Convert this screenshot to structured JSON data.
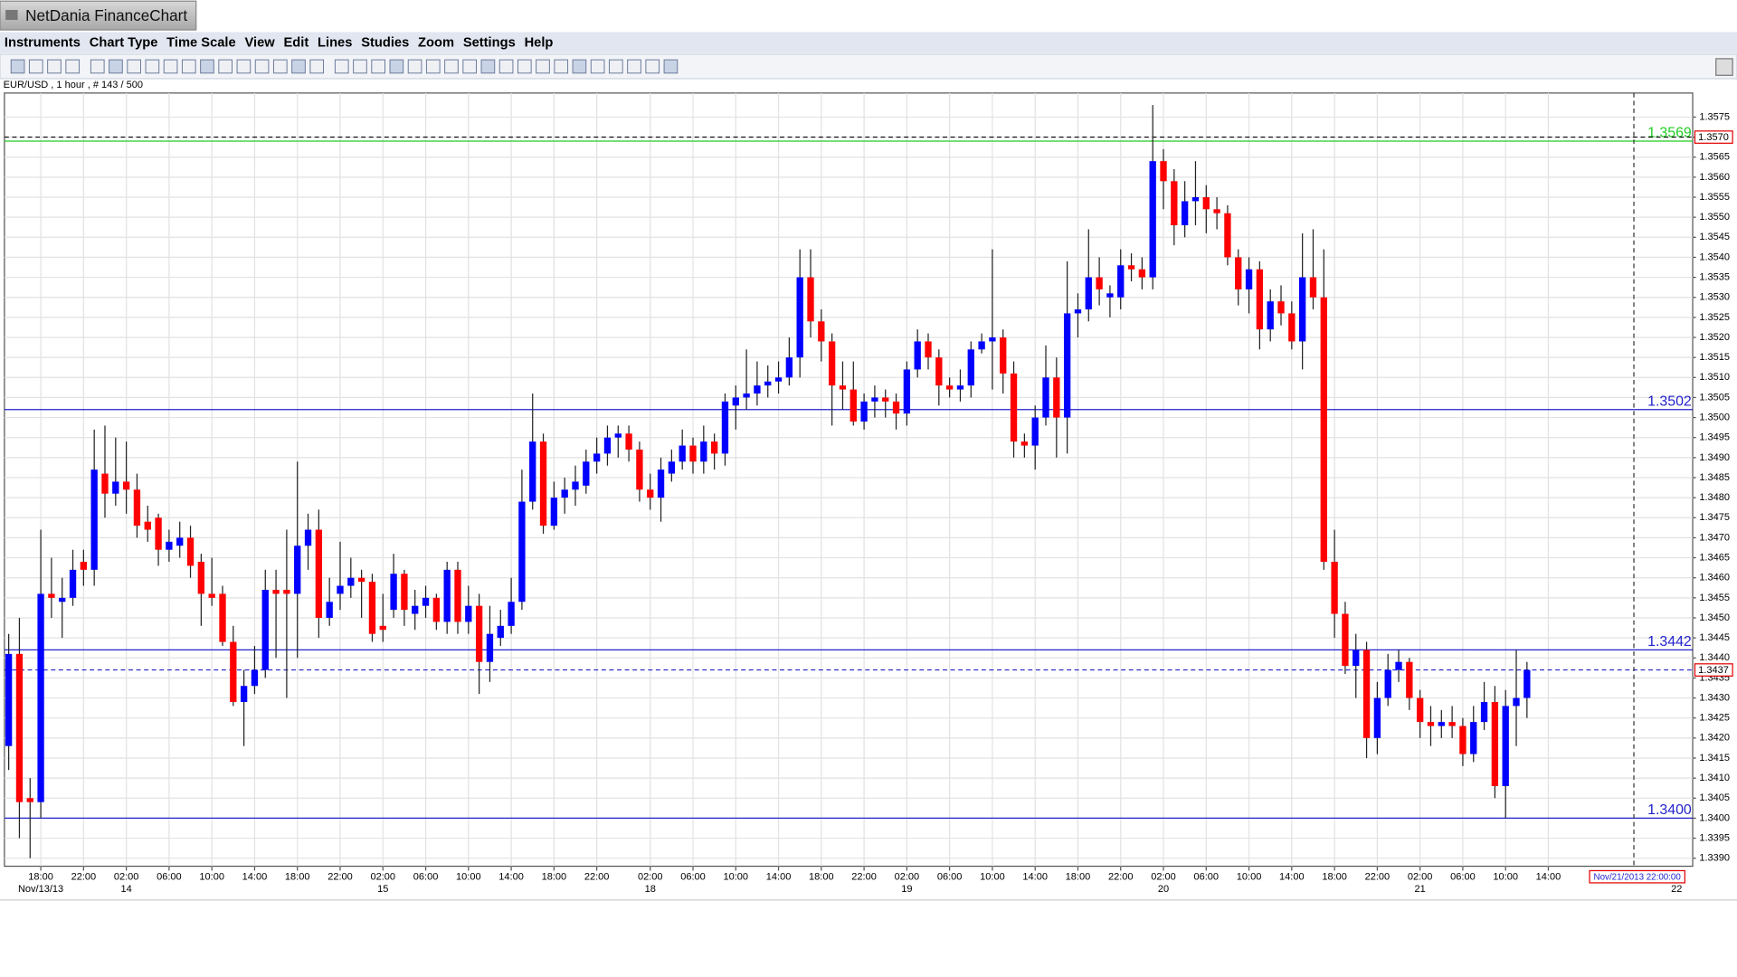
{
  "window_title": "NetDania FinanceChart",
  "menu": [
    "Instruments",
    "Chart Type",
    "Time Scale",
    "View",
    "Edit",
    "Lines",
    "Studies",
    "Zoom",
    "Settings",
    "Help"
  ],
  "chart_data": {
    "type": "candlestick",
    "title": "EUR/USD , 1 hour , # 143 / 500",
    "up_color": "#0000ff",
    "down_color": "#ff0000",
    "grid": true,
    "open": [
      1.3418,
      1.3441,
      1.3405,
      1.3404,
      1.3456,
      1.3454,
      1.3455,
      1.3464,
      1.3462,
      1.3486,
      1.3481,
      1.3484,
      1.3482,
      1.3474,
      1.3475,
      1.3467,
      1.3468,
      1.347,
      1.3464,
      1.3456,
      1.3456,
      1.3444,
      1.3429,
      1.3433,
      1.3437,
      1.3457,
      1.3457,
      1.3456,
      1.3468,
      1.3472,
      1.345,
      1.3456,
      1.3458,
      1.346,
      1.3459,
      1.3448,
      1.3452,
      1.3461,
      1.3451,
      1.3453,
      1.3455,
      1.3449,
      1.3462,
      1.3449,
      1.3453,
      1.3439,
      1.3445,
      1.3448,
      1.3454,
      1.3479,
      1.3494,
      1.3473,
      1.348,
      1.3482,
      1.3483,
      1.3489,
      1.3491,
      1.3495,
      1.3496,
      1.3492,
      1.3482,
      1.348,
      1.3486,
      1.3489,
      1.3493,
      1.3489,
      1.3494,
      1.3491,
      1.3503,
      1.3505,
      1.3506,
      1.3508,
      1.3509,
      1.351,
      1.3515,
      1.3535,
      1.3524,
      1.3519,
      1.3508,
      1.3507,
      1.3499,
      1.3504,
      1.3505,
      1.3504,
      1.3501,
      1.3512,
      1.3519,
      1.3515,
      1.3508,
      1.3507,
      1.3508,
      1.3517,
      1.3519,
      1.352,
      1.3511,
      1.3494,
      1.3493,
      1.35,
      1.351,
      1.35,
      1.3526,
      1.3527,
      1.3535,
      1.353,
      1.353,
      1.3538,
      1.3537,
      1.3535,
      1.3564,
      1.3559,
      1.3548,
      1.3554,
      1.3555,
      1.3552,
      1.3551,
      1.354,
      1.3532,
      1.3537,
      1.3522,
      1.3529,
      1.3526,
      1.3519,
      1.3535,
      1.353,
      1.3464,
      1.3451,
      1.3438,
      1.3442,
      1.342,
      1.343,
      1.3437,
      1.3439,
      1.343,
      1.3424,
      1.3423,
      1.3424,
      1.3423,
      1.3416,
      1.3424,
      1.3429,
      1.3408,
      1.3428,
      1.343
    ],
    "high": [
      1.3446,
      1.345,
      1.341,
      1.3472,
      1.3465,
      1.346,
      1.3467,
      1.3467,
      1.3497,
      1.3498,
      1.3495,
      1.3494,
      1.3486,
      1.3478,
      1.3476,
      1.3472,
      1.3474,
      1.3473,
      1.3466,
      1.3465,
      1.3458,
      1.3448,
      1.3437,
      1.3443,
      1.3462,
      1.3462,
      1.3472,
      1.3489,
      1.3476,
      1.3477,
      1.346,
      1.3469,
      1.3465,
      1.3462,
      1.3461,
      1.3456,
      1.3466,
      1.3462,
      1.3457,
      1.3458,
      1.3456,
      1.3464,
      1.3464,
      1.3458,
      1.3456,
      1.3453,
      1.3452,
      1.346,
      1.3487,
      1.3506,
      1.3496,
      1.3484,
      1.3485,
      1.3488,
      1.3492,
      1.3495,
      1.3498,
      1.3498,
      1.3498,
      1.3494,
      1.3486,
      1.349,
      1.3492,
      1.3497,
      1.3495,
      1.3498,
      1.3496,
      1.3506,
      1.3508,
      1.3517,
      1.3514,
      1.3513,
      1.3514,
      1.352,
      1.3542,
      1.3542,
      1.3527,
      1.3521,
      1.3514,
      1.3514,
      1.3506,
      1.3508,
      1.3507,
      1.3506,
      1.3514,
      1.3522,
      1.3521,
      1.3517,
      1.351,
      1.3512,
      1.3519,
      1.3521,
      1.3542,
      1.3522,
      1.3514,
      1.3496,
      1.3503,
      1.3518,
      1.3515,
      1.3539,
      1.3531,
      1.3547,
      1.354,
      1.3533,
      1.3542,
      1.3541,
      1.354,
      1.3578,
      1.3567,
      1.3562,
      1.3559,
      1.3564,
      1.3558,
      1.3555,
      1.3553,
      1.3542,
      1.354,
      1.3539,
      1.3532,
      1.3533,
      1.3529,
      1.3546,
      1.3547,
      1.3542,
      1.3472,
      1.3454,
      1.3446,
      1.3444,
      1.3434,
      1.3441,
      1.3442,
      1.344,
      1.3432,
      1.3428,
      1.3427,
      1.3428,
      1.3425,
      1.3428,
      1.3434,
      1.3433,
      1.3432,
      1.3442,
      1.3439
    ],
    "low": [
      1.3412,
      1.3395,
      1.339,
      1.34,
      1.345,
      1.3445,
      1.3453,
      1.3458,
      1.3458,
      1.3475,
      1.3478,
      1.3476,
      1.347,
      1.3469,
      1.3463,
      1.3464,
      1.3465,
      1.346,
      1.3448,
      1.3453,
      1.3443,
      1.3428,
      1.3418,
      1.3431,
      1.3435,
      1.344,
      1.343,
      1.344,
      1.3462,
      1.3445,
      1.3448,
      1.3452,
      1.3455,
      1.345,
      1.3444,
      1.3444,
      1.345,
      1.3448,
      1.3447,
      1.345,
      1.3447,
      1.3446,
      1.3446,
      1.3446,
      1.3431,
      1.3434,
      1.3443,
      1.3446,
      1.3452,
      1.3477,
      1.3471,
      1.3472,
      1.3476,
      1.3478,
      1.3481,
      1.3486,
      1.3488,
      1.349,
      1.3489,
      1.3479,
      1.3477,
      1.3474,
      1.3484,
      1.3487,
      1.3486,
      1.3486,
      1.3487,
      1.3488,
      1.3497,
      1.3502,
      1.3503,
      1.3505,
      1.3506,
      1.3508,
      1.351,
      1.352,
      1.3514,
      1.3498,
      1.3502,
      1.3498,
      1.3497,
      1.35,
      1.35,
      1.3497,
      1.3498,
      1.351,
      1.3512,
      1.3503,
      1.3505,
      1.3504,
      1.3505,
      1.3516,
      1.3507,
      1.3506,
      1.349,
      1.349,
      1.3487,
      1.3498,
      1.349,
      1.3491,
      1.352,
      1.3524,
      1.3528,
      1.3525,
      1.3527,
      1.3534,
      1.3532,
      1.3532,
      1.3552,
      1.3543,
      1.3545,
      1.3548,
      1.3546,
      1.3547,
      1.3538,
      1.3528,
      1.3526,
      1.3517,
      1.3519,
      1.3523,
      1.3517,
      1.3512,
      1.3527,
      1.3462,
      1.3445,
      1.3436,
      1.343,
      1.3415,
      1.3416,
      1.3428,
      1.3434,
      1.3427,
      1.342,
      1.3418,
      1.342,
      1.342,
      1.3413,
      1.3414,
      1.3422,
      1.3405,
      1.34,
      1.3418,
      1.3425
    ],
    "close": [
      1.3441,
      1.3404,
      1.3404,
      1.3456,
      1.3455,
      1.3455,
      1.3462,
      1.3462,
      1.3487,
      1.3481,
      1.3484,
      1.3482,
      1.3473,
      1.3472,
      1.3467,
      1.3469,
      1.347,
      1.3463,
      1.3456,
      1.3455,
      1.3444,
      1.3429,
      1.3433,
      1.3437,
      1.3457,
      1.3456,
      1.3456,
      1.3468,
      1.3472,
      1.345,
      1.3454,
      1.3458,
      1.346,
      1.3459,
      1.3446,
      1.3447,
      1.3461,
      1.3452,
      1.3453,
      1.3455,
      1.3449,
      1.3462,
      1.3449,
      1.3453,
      1.3439,
      1.3446,
      1.3448,
      1.3454,
      1.3479,
      1.3494,
      1.3473,
      1.348,
      1.3482,
      1.3484,
      1.3489,
      1.3491,
      1.3495,
      1.3496,
      1.3492,
      1.3482,
      1.348,
      1.3487,
      1.3489,
      1.3493,
      1.3489,
      1.3494,
      1.3491,
      1.3504,
      1.3505,
      1.3506,
      1.3508,
      1.3509,
      1.351,
      1.3515,
      1.3535,
      1.3524,
      1.3519,
      1.3508,
      1.3507,
      1.3499,
      1.3504,
      1.3505,
      1.3504,
      1.3501,
      1.3512,
      1.3519,
      1.3515,
      1.3508,
      1.3507,
      1.3508,
      1.3517,
      1.3519,
      1.352,
      1.3511,
      1.3494,
      1.3493,
      1.35,
      1.351,
      1.35,
      1.3526,
      1.3527,
      1.3535,
      1.3532,
      1.3531,
      1.3538,
      1.3537,
      1.3535,
      1.3564,
      1.3559,
      1.3548,
      1.3554,
      1.3555,
      1.3552,
      1.3551,
      1.354,
      1.3532,
      1.3537,
      1.3522,
      1.3529,
      1.3526,
      1.3519,
      1.3535,
      1.353,
      1.3464,
      1.3451,
      1.3438,
      1.3442,
      1.342,
      1.343,
      1.3437,
      1.3439,
      1.343,
      1.3424,
      1.3423,
      1.3424,
      1.3423,
      1.3416,
      1.3424,
      1.3429,
      1.3408,
      1.3428,
      1.343,
      1.3437
    ],
    "xlim": [
      -0.4,
      157.5
    ],
    "xticks": [
      {
        "value": 3,
        "label": "18:00"
      },
      {
        "value": 7,
        "label": "22:00"
      },
      {
        "value": 11,
        "label": "02:00"
      },
      {
        "value": 15,
        "label": "06:00"
      },
      {
        "value": 19,
        "label": "10:00"
      },
      {
        "value": 23,
        "label": "14:00"
      },
      {
        "value": 27,
        "label": "18:00"
      },
      {
        "value": 31,
        "label": "22:00"
      },
      {
        "value": 35,
        "label": "02:00"
      },
      {
        "value": 39,
        "label": "06:00"
      },
      {
        "value": 43,
        "label": "10:00"
      },
      {
        "value": 47,
        "label": "14:00"
      },
      {
        "value": 51,
        "label": "18:00"
      },
      {
        "value": 55,
        "label": "22:00"
      },
      {
        "value": 60,
        "label": "02:00"
      },
      {
        "value": 64,
        "label": "06:00"
      },
      {
        "value": 68,
        "label": "10:00"
      },
      {
        "value": 72,
        "label": "14:00"
      },
      {
        "value": 76,
        "label": "18:00"
      },
      {
        "value": 80,
        "label": "22:00"
      },
      {
        "value": 84,
        "label": "02:00"
      },
      {
        "value": 88,
        "label": "06:00"
      },
      {
        "value": 92,
        "label": "10:00"
      },
      {
        "value": 96,
        "label": "14:00"
      },
      {
        "value": 100,
        "label": "18:00"
      },
      {
        "value": 104,
        "label": "22:00"
      },
      {
        "value": 108,
        "label": "02:00"
      },
      {
        "value": 112,
        "label": "06:00"
      },
      {
        "value": 116,
        "label": "10:00"
      },
      {
        "value": 120,
        "label": "14:00"
      },
      {
        "value": 124,
        "label": "18:00"
      },
      {
        "value": 128,
        "label": "22:00"
      },
      {
        "value": 132,
        "label": "02:00"
      },
      {
        "value": 136,
        "label": "06:00"
      },
      {
        "value": 140,
        "label": "10:00"
      },
      {
        "value": 144,
        "label": "14:00"
      }
    ],
    "date_labels": [
      {
        "value": 3,
        "label": "Nov/13/13"
      },
      {
        "value": 11,
        "label": "14"
      },
      {
        "value": 35,
        "label": "15"
      },
      {
        "value": 60,
        "label": "18"
      },
      {
        "value": 84,
        "label": "19"
      },
      {
        "value": 108,
        "label": "20"
      },
      {
        "value": 132,
        "label": "21"
      },
      {
        "value": 156,
        "label": "22"
      }
    ],
    "ylim": [
      1.3388,
      1.3581
    ],
    "yticks": [
      {
        "value": 1.339,
        "label": "1.3390"
      },
      1.3395,
      {
        "value": 1.34,
        "label": "1.3400"
      },
      1.3405,
      {
        "value": 1.341,
        "label": "1.3410"
      },
      1.3415,
      {
        "value": 1.342,
        "label": "1.3420"
      },
      1.3425,
      {
        "value": 1.343,
        "label": "1.3430"
      },
      1.3435,
      {
        "value": 1.344,
        "label": "1.3440"
      },
      1.3445,
      {
        "value": 1.345,
        "label": "1.3450"
      },
      1.3455,
      {
        "value": 1.346,
        "label": "1.3460"
      },
      1.3465,
      {
        "value": 1.347,
        "label": "1.3470"
      },
      1.3475,
      {
        "value": 1.348,
        "label": "1.3480"
      },
      1.3485,
      {
        "value": 1.349,
        "label": "1.3490"
      },
      1.3495,
      {
        "value": 1.35,
        "label": "1.3500"
      },
      1.3505,
      {
        "value": 1.351,
        "label": "1.3510"
      },
      1.3515,
      {
        "value": 1.352,
        "label": "1.3520"
      },
      1.3525,
      {
        "value": 1.353,
        "label": "1.3530"
      },
      1.3535,
      {
        "value": 1.354,
        "label": "1.3540"
      },
      1.3545,
      {
        "value": 1.355,
        "label": "1.3550"
      },
      1.3555,
      {
        "value": 1.356,
        "label": "1.3560"
      },
      1.3565,
      {
        "value": 1.357,
        "label": "1.3570"
      },
      1.3575
    ],
    "levels": [
      {
        "value": 1.3569,
        "color": "#22cc22"
      },
      {
        "value": 1.3502,
        "color": "#2222cc"
      },
      {
        "value": 1.3442,
        "color": "#2222cc"
      },
      {
        "value": 1.34,
        "label": "1.3400",
        "color": "#2222cc"
      }
    ],
    "price_markers": [
      {
        "value": 1.357,
        "label": "1.3570",
        "color": "#000000"
      },
      {
        "value": 1.3437,
        "color": "#2222cc"
      }
    ],
    "cursor": {
      "value": 152,
      "label": "Nov/21/2013 22:00:00"
    }
  }
}
